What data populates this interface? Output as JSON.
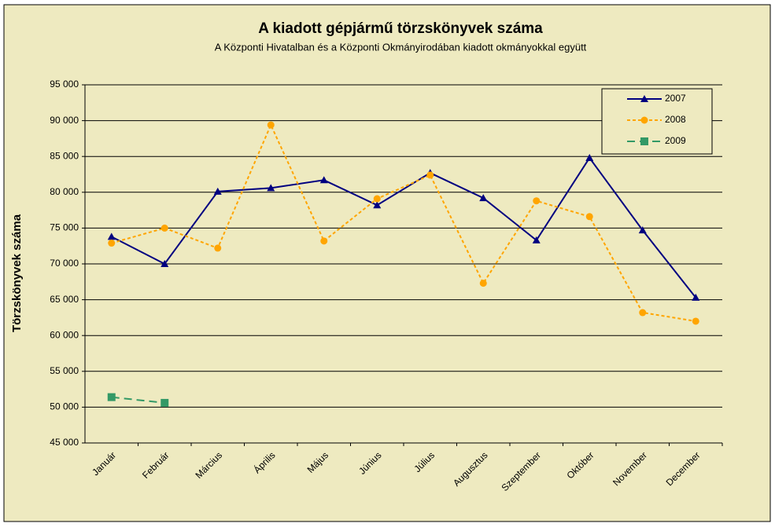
{
  "chart_data": {
    "type": "line",
    "title": "A  kiadott gépjármű  törzskönyvek száma",
    "subtitle": "A Központi Hivatalban és a Központi Okmányirodában kiadott okmányokkal együtt",
    "y_label": "Törzskönyvek száma",
    "categories": [
      "Január",
      "Február",
      "Március",
      "Április",
      "Május",
      "Június",
      "Július",
      "Augusztus",
      "Szeptember",
      "Október",
      "November",
      "December"
    ],
    "series": [
      {
        "name": "2007",
        "color": "#000080",
        "marker": "triangle",
        "dashed": false,
        "values": [
          73800,
          70000,
          80100,
          80600,
          81700,
          78200,
          82700,
          79200,
          73300,
          84800,
          74700,
          65300
        ]
      },
      {
        "name": "2008",
        "color": "#FFA500",
        "marker": "circle",
        "dashed": true,
        "values": [
          72900,
          75000,
          72200,
          89400,
          73200,
          79100,
          82400,
          67300,
          78800,
          76600,
          63200,
          62000
        ]
      },
      {
        "name": "2009",
        "color": "#339966",
        "marker": "square",
        "dashed": true,
        "values": [
          51400,
          50600,
          null,
          null,
          null,
          null,
          null,
          null,
          null,
          null,
          null,
          null
        ]
      }
    ],
    "ylim": [
      45000,
      95000
    ],
    "yticks": [
      {
        "value": 45000,
        "label": "45 000"
      },
      {
        "value": 50000,
        "label": "50 000"
      },
      {
        "value": 55000,
        "label": "55 000"
      },
      {
        "value": 60000,
        "label": "60 000"
      },
      {
        "value": 65000,
        "label": "65 000"
      },
      {
        "value": 70000,
        "label": "70 000"
      },
      {
        "value": 75000,
        "label": "75 000"
      },
      {
        "value": 80000,
        "label": "80 000"
      },
      {
        "value": 85000,
        "label": "85 000"
      },
      {
        "value": 90000,
        "label": "90 000"
      },
      {
        "value": 95000,
        "label": "95 000"
      }
    ],
    "grid": true,
    "legend": "upper right"
  }
}
